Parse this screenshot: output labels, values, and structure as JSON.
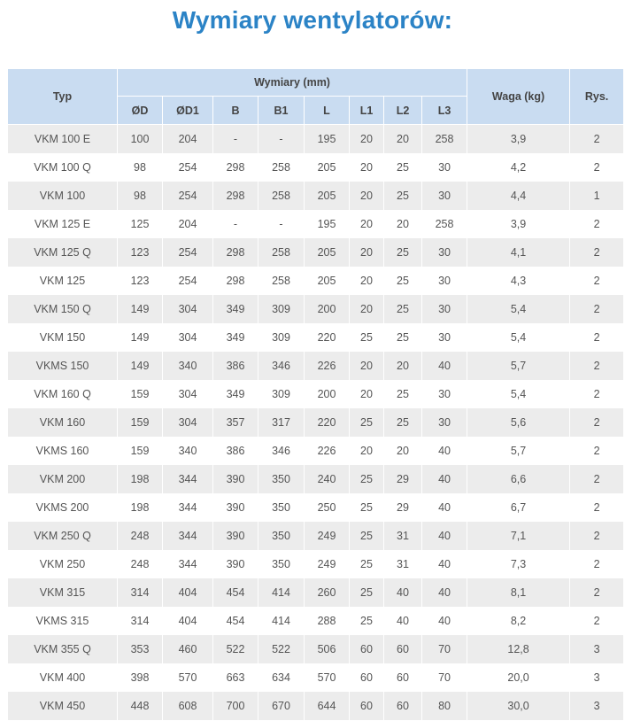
{
  "header": {
    "title": "Wymiary wentylatorów:"
  },
  "table": {
    "columns": {
      "type": "Typ",
      "dimensions": "Wymiary (mm)",
      "weight": "Waga (kg)",
      "figure": "Rys."
    },
    "subcolumns": [
      "ØD",
      "ØD1",
      "B",
      "B1",
      "L",
      "L1",
      "L2",
      "L3"
    ],
    "rows": [
      [
        "VKM 100 E",
        "100",
        "204",
        "-",
        "-",
        "195",
        "20",
        "20",
        "258",
        "3,9",
        "2"
      ],
      [
        "VKM 100 Q",
        "98",
        "254",
        "298",
        "258",
        "205",
        "20",
        "25",
        "30",
        "4,2",
        "2"
      ],
      [
        "VKM 100",
        "98",
        "254",
        "298",
        "258",
        "205",
        "20",
        "25",
        "30",
        "4,4",
        "1"
      ],
      [
        "VKM 125 E",
        "125",
        "204",
        "-",
        "-",
        "195",
        "20",
        "20",
        "258",
        "3,9",
        "2"
      ],
      [
        "VKM 125 Q",
        "123",
        "254",
        "298",
        "258",
        "205",
        "20",
        "25",
        "30",
        "4,1",
        "2"
      ],
      [
        "VKM 125",
        "123",
        "254",
        "298",
        "258",
        "205",
        "20",
        "25",
        "30",
        "4,3",
        "2"
      ],
      [
        "VKM 150 Q",
        "149",
        "304",
        "349",
        "309",
        "200",
        "20",
        "25",
        "30",
        "5,4",
        "2"
      ],
      [
        "VKM 150",
        "149",
        "304",
        "349",
        "309",
        "220",
        "25",
        "25",
        "30",
        "5,4",
        "2"
      ],
      [
        "VKMS 150",
        "149",
        "340",
        "386",
        "346",
        "226",
        "20",
        "20",
        "40",
        "5,7",
        "2"
      ],
      [
        "VKM 160 Q",
        "159",
        "304",
        "349",
        "309",
        "200",
        "20",
        "25",
        "30",
        "5,4",
        "2"
      ],
      [
        "VKM 160",
        "159",
        "304",
        "357",
        "317",
        "220",
        "25",
        "25",
        "30",
        "5,6",
        "2"
      ],
      [
        "VKMS 160",
        "159",
        "340",
        "386",
        "346",
        "226",
        "20",
        "20",
        "40",
        "5,7",
        "2"
      ],
      [
        "VKM 200",
        "198",
        "344",
        "390",
        "350",
        "240",
        "25",
        "29",
        "40",
        "6,6",
        "2"
      ],
      [
        "VKMS 200",
        "198",
        "344",
        "390",
        "350",
        "250",
        "25",
        "29",
        "40",
        "6,7",
        "2"
      ],
      [
        "VKM 250 Q",
        "248",
        "344",
        "390",
        "350",
        "249",
        "25",
        "31",
        "40",
        "7,1",
        "2"
      ],
      [
        "VKM 250",
        "248",
        "344",
        "390",
        "350",
        "249",
        "25",
        "31",
        "40",
        "7,3",
        "2"
      ],
      [
        "VKM 315",
        "314",
        "404",
        "454",
        "414",
        "260",
        "25",
        "40",
        "40",
        "8,1",
        "2"
      ],
      [
        "VKMS 315",
        "314",
        "404",
        "454",
        "414",
        "288",
        "25",
        "40",
        "40",
        "8,2",
        "2"
      ],
      [
        "VKM 355 Q",
        "353",
        "460",
        "522",
        "522",
        "506",
        "60",
        "60",
        "70",
        "12,8",
        "3"
      ],
      [
        "VKM 400",
        "398",
        "570",
        "663",
        "634",
        "570",
        "60",
        "60",
        "70",
        "20,0",
        "3"
      ],
      [
        "VKM 450",
        "448",
        "608",
        "700",
        "670",
        "644",
        "60",
        "60",
        "80",
        "30,0",
        "3"
      ]
    ]
  }
}
